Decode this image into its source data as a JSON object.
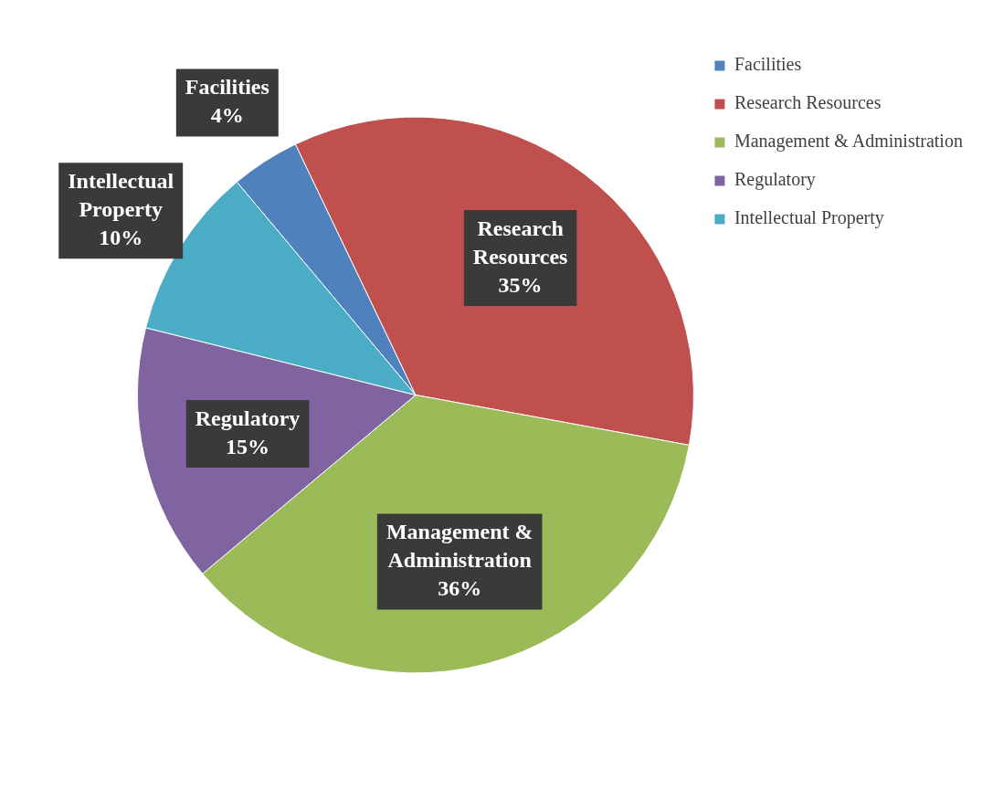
{
  "chart_data": {
    "type": "pie",
    "categories": [
      "Facilities",
      "Research Resources",
      "Management & Administration",
      "Regulatory",
      "Intellectual Property"
    ],
    "values": [
      4,
      35,
      36,
      15,
      10
    ],
    "value_labels": [
      "4%",
      "35%",
      "36%",
      "15%",
      "10%"
    ],
    "colors": [
      "#4f81bd",
      "#c0504d",
      "#9bbb59",
      "#8064a2",
      "#4bacc6"
    ],
    "legend": "top right"
  }
}
